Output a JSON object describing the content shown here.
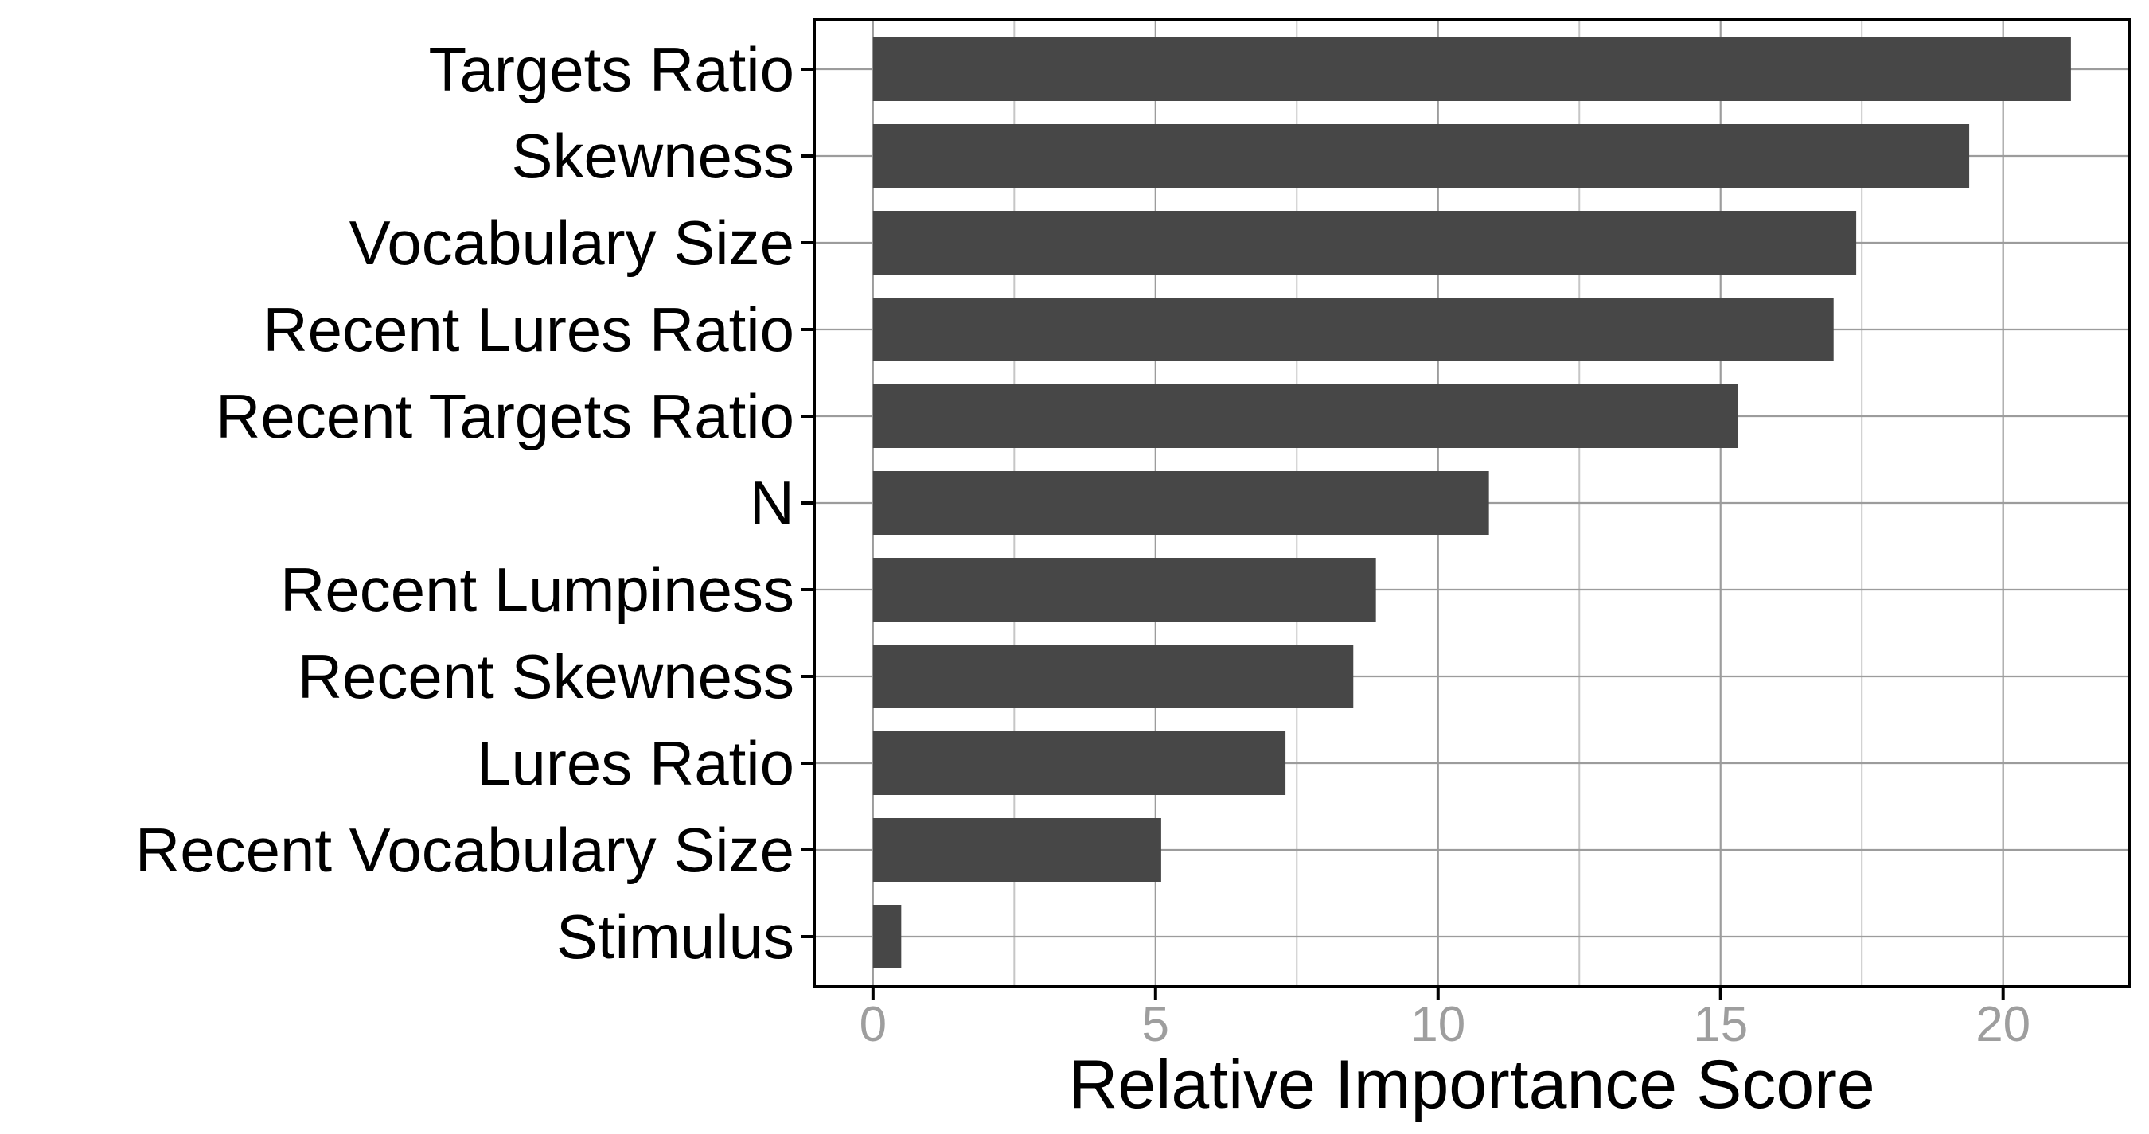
{
  "chart_data": {
    "type": "bar",
    "orientation": "horizontal",
    "title": "",
    "xlabel": "Relative Importance Score",
    "ylabel": "",
    "categories": [
      "Targets Ratio",
      "Skewness",
      "Vocabulary Size",
      "Recent Lures Ratio",
      "Recent Targets Ratio",
      "N",
      "Recent Lumpiness",
      "Recent Skewness",
      "Lures Ratio",
      "Recent Vocabulary Size",
      "Stimulus"
    ],
    "values": [
      21.2,
      19.4,
      17.4,
      17.0,
      15.3,
      10.9,
      8.9,
      8.5,
      7.3,
      5.1,
      0.5
    ],
    "xticks": [
      0,
      5,
      10,
      15,
      20
    ],
    "xtick_labels": [
      "0",
      "5",
      "10",
      "15",
      "20"
    ],
    "xticks_minor": [
      2.5,
      7.5,
      12.5,
      17.5
    ],
    "xlim": [
      -1.04,
      22.23
    ],
    "legend": "none",
    "grid": {
      "vertical_major": true,
      "vertical_minor": true,
      "horizontal_major": true
    },
    "colors": {
      "bar": "#474747",
      "grid_major": "#9c9c9c",
      "grid_minor": "#c6c6c6",
      "tick_label": "#9e9e9e",
      "axis_title": "#000000",
      "panel_border": "#000000",
      "background": "#ffffff"
    }
  }
}
